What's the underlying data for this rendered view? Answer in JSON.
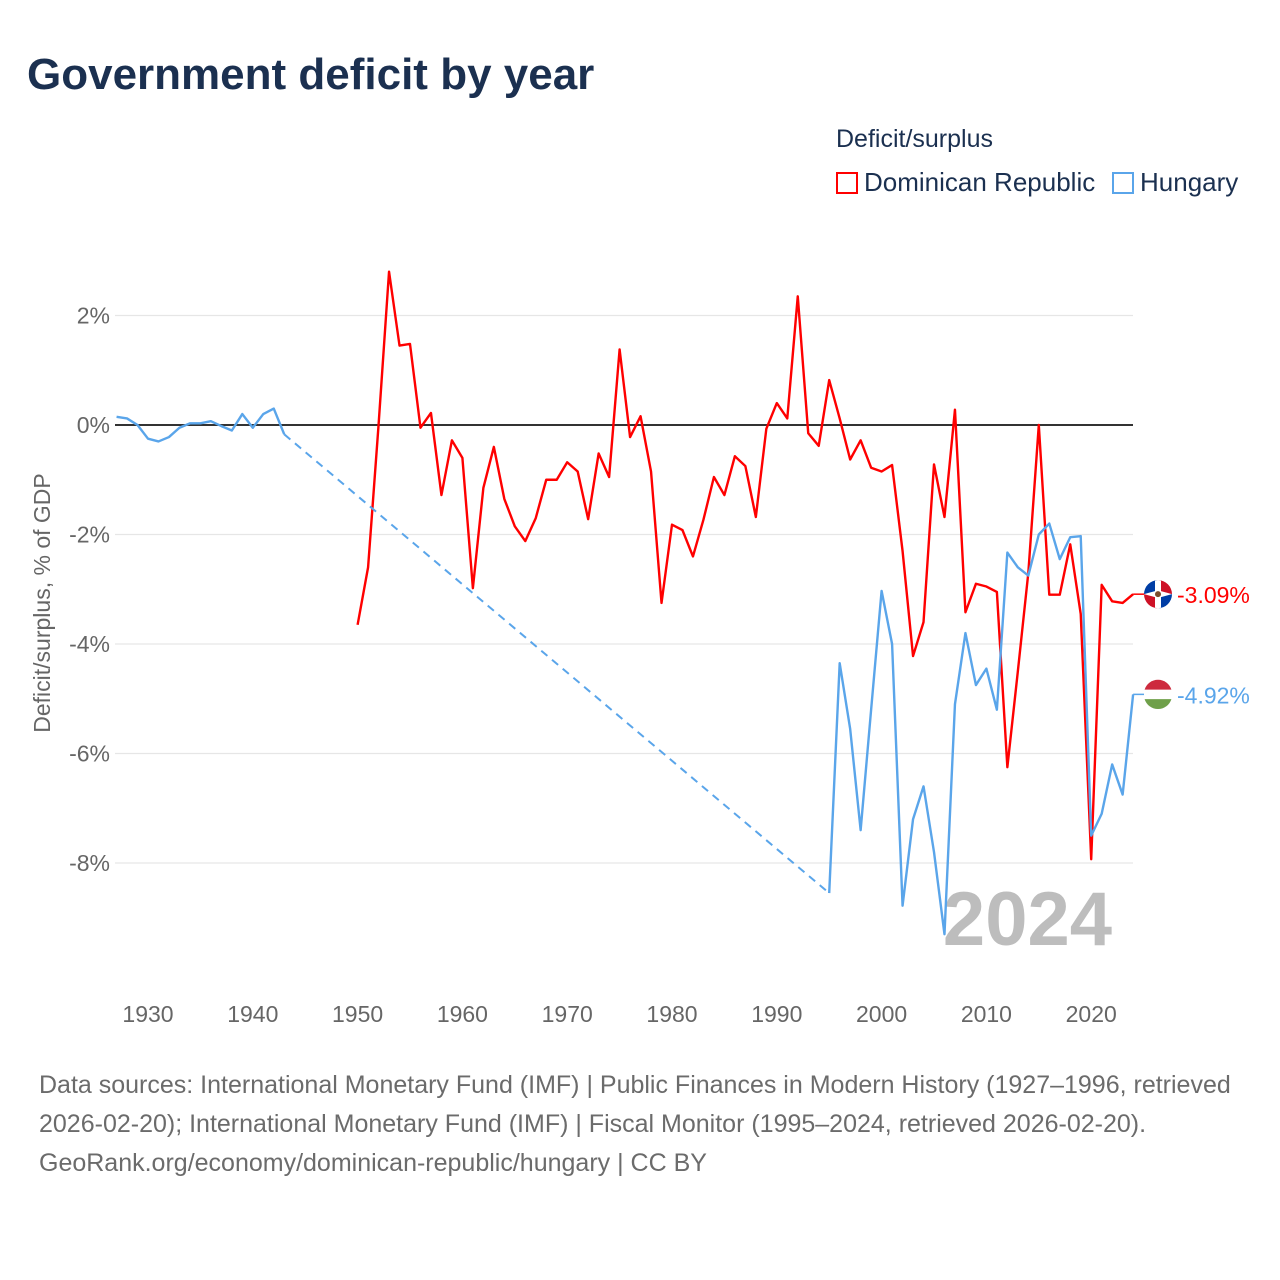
{
  "title": "Government deficit by year",
  "legend": {
    "title": "Deficit/surplus",
    "items": [
      "Dominican Republic",
      "Hungary"
    ]
  },
  "year_watermark": "2024",
  "source_text": "Data sources: International Monetary Fund (IMF) | Public Finances in Modern History (1927–1996, retrieved 2026-02-20); International Monetary Fund (IMF) | Fiscal Monitor (1995–2024, retrieved 2026-02-20).",
  "credit": "GeoRank.org/economy/dominican-republic/hungary | CC BY",
  "chart_data": {
    "type": "line",
    "title": "Government deficit by year",
    "ylabel": "Deficit/surplus, % of GDP",
    "xlabel": "",
    "xlim": [
      1927,
      2024
    ],
    "ylim": [
      -10,
      3
    ],
    "x_ticks": [
      1930,
      1940,
      1950,
      1960,
      1970,
      1980,
      1990,
      2000,
      2010,
      2020
    ],
    "x_tick_labels": [
      "1930",
      "1940",
      "1950",
      "1960",
      "1970",
      "1980",
      "1990",
      "2000",
      "2010",
      "2020"
    ],
    "y_ticks": [
      2,
      0,
      -2,
      -4,
      -6,
      -8
    ],
    "y_tick_labels": [
      "2%",
      "0%",
      "-2%",
      "-4%",
      "-6%",
      "-8%"
    ],
    "grid": true,
    "legend_position": "top-right",
    "series": [
      {
        "name": "Dominican Republic",
        "color": "#ff0000",
        "end_label": "-3.09%",
        "x": [
          1950,
          1951,
          1952,
          1953,
          1954,
          1955,
          1956,
          1957,
          1958,
          1959,
          1960,
          1961,
          1962,
          1963,
          1964,
          1965,
          1966,
          1967,
          1968,
          1969,
          1970,
          1971,
          1972,
          1973,
          1974,
          1975,
          1976,
          1977,
          1978,
          1979,
          1980,
          1981,
          1982,
          1983,
          1984,
          1985,
          1986,
          1987,
          1988,
          1989,
          1990,
          1991,
          1992,
          1993,
          1994,
          1995,
          1996,
          1997,
          1998,
          1999,
          2000,
          2001,
          2002,
          2003,
          2004,
          2005,
          2006,
          2007,
          2008,
          2009,
          2010,
          2011,
          2012,
          2013,
          2014,
          2015,
          2016,
          2017,
          2018,
          2019,
          2020,
          2021,
          2022,
          2023,
          2024
        ],
        "y": [
          -3.65,
          -2.6,
          0.0,
          2.8,
          1.45,
          1.48,
          -0.05,
          0.22,
          -1.28,
          -0.28,
          -0.6,
          -2.98,
          -1.15,
          -0.4,
          -1.35,
          -1.85,
          -2.12,
          -1.7,
          -1.0,
          -1.0,
          -0.68,
          -0.85,
          -1.72,
          -0.52,
          -0.95,
          1.38,
          -0.22,
          0.16,
          -0.85,
          -3.25,
          -1.82,
          -1.92,
          -2.4,
          -1.73,
          -0.95,
          -1.28,
          -0.57,
          -0.75,
          -1.68,
          -0.07,
          0.4,
          0.12,
          2.35,
          -0.15,
          -0.38,
          0.82,
          0.12,
          -0.63,
          -0.28,
          -0.78,
          -0.85,
          -0.73,
          -2.3,
          -4.22,
          -3.6,
          -0.72,
          -1.68,
          0.28,
          -3.42,
          -2.9,
          -2.95,
          -3.05,
          -6.25,
          -4.5,
          -2.7,
          0.0,
          -3.1,
          -3.1,
          -2.18,
          -3.45,
          -7.93,
          -2.92,
          -3.22,
          -3.25,
          -3.09
        ]
      },
      {
        "name": "Hungary",
        "color": "#5aa5ea",
        "end_label": "-4.92%",
        "x": [
          1927,
          1928,
          1929,
          1930,
          1931,
          1932,
          1933,
          1934,
          1935,
          1936,
          1937,
          1938,
          1939,
          1940,
          1941,
          1942,
          1943,
          1995,
          1996,
          1997,
          1998,
          1999,
          2000,
          2001,
          2002,
          2003,
          2004,
          2005,
          2006,
          2007,
          2008,
          2009,
          2010,
          2011,
          2012,
          2013,
          2014,
          2015,
          2016,
          2017,
          2018,
          2019,
          2020,
          2021,
          2022,
          2023,
          2024
        ],
        "y": [
          0.15,
          0.12,
          0.0,
          -0.25,
          -0.3,
          -0.22,
          -0.05,
          0.03,
          0.03,
          0.07,
          -0.02,
          -0.1,
          0.2,
          -0.05,
          0.2,
          0.3,
          -0.17,
          -8.55,
          -4.35,
          -5.55,
          -7.4,
          -5.2,
          -3.03,
          -4.0,
          -8.78,
          -7.2,
          -6.6,
          -7.8,
          -9.3,
          -5.1,
          -3.8,
          -4.75,
          -4.45,
          -5.2,
          -2.33,
          -2.6,
          -2.75,
          -2.0,
          -1.8,
          -2.45,
          -2.05,
          -2.03,
          -7.5,
          -7.1,
          -6.2,
          -6.75,
          -4.92
        ],
        "gap_after": 1943
      }
    ]
  }
}
